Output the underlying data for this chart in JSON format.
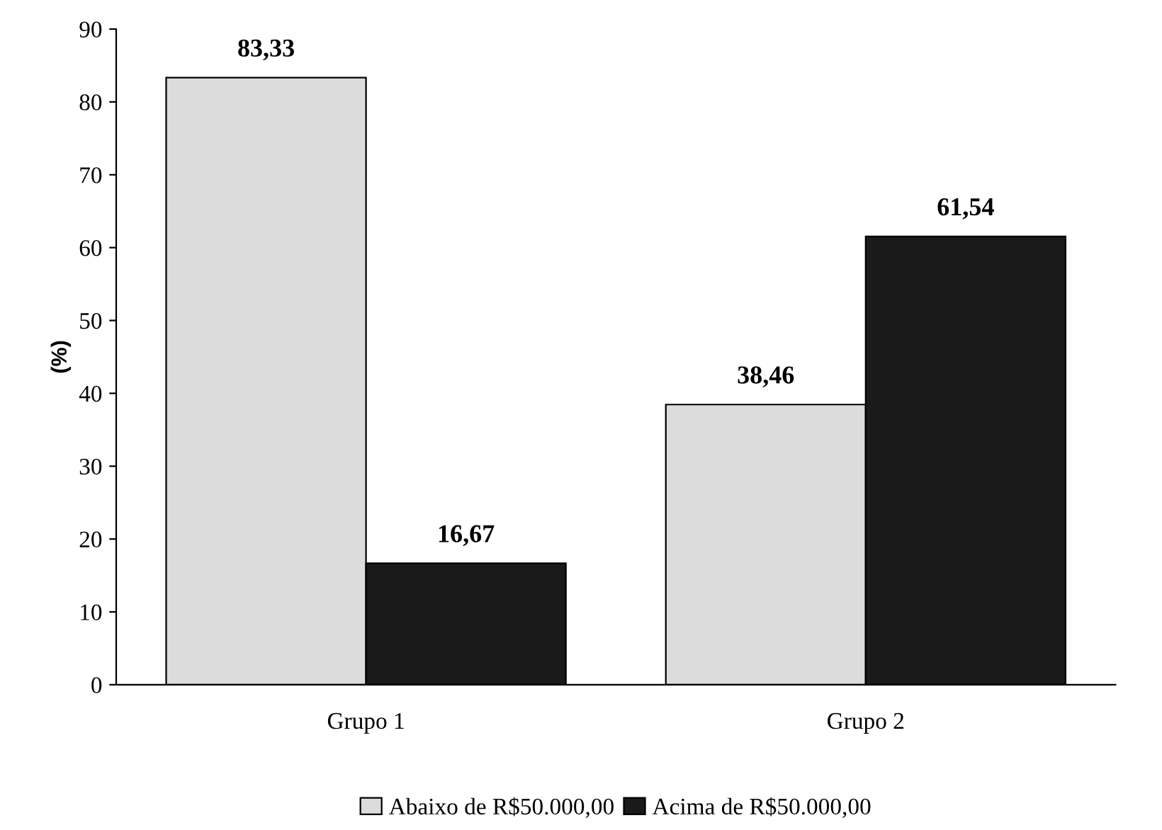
{
  "chart_data": {
    "type": "bar",
    "ylabel": "(%)",
    "categories": [
      "Grupo 1",
      "Grupo 2"
    ],
    "series": [
      {
        "name": "Abaixo de R$50.000,00",
        "color": "#dcdcdc",
        "values": [
          83.33,
          38.46
        ],
        "value_labels": [
          "83,33",
          "38,46"
        ]
      },
      {
        "name": "Acima de R$50.000,00",
        "color": "#1a1a1a",
        "values": [
          16.67,
          61.54
        ],
        "value_labels": [
          "16,67",
          "61,54"
        ]
      }
    ],
    "ylim": [
      0,
      90
    ],
    "yticks": [
      0,
      10,
      20,
      30,
      40,
      50,
      60,
      70,
      80,
      90
    ],
    "grid": false,
    "legend": "bottom"
  }
}
